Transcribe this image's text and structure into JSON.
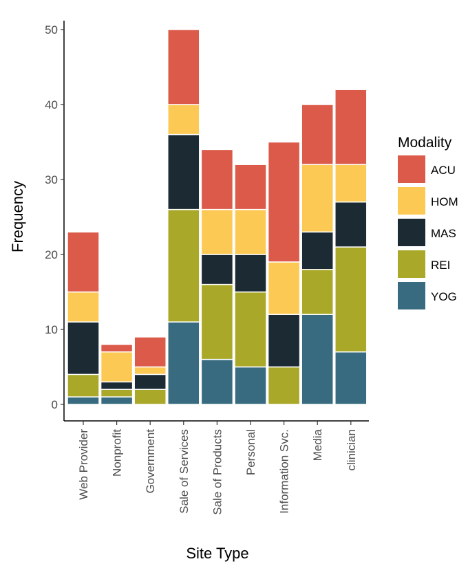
{
  "chart_data": {
    "type": "bar",
    "stacked": true,
    "xlabel": "Site Type",
    "ylabel": "Frequency",
    "ylim": [
      0,
      52
    ],
    "yticks": [
      0,
      10,
      20,
      30,
      40,
      50
    ],
    "categories": [
      "Web Provider",
      "Nonprofit",
      "Government",
      "Sale of Services",
      "Sale of Products",
      "Personal",
      "Information Svc.",
      "Media",
      "clinician"
    ],
    "legend": {
      "title": "Modality",
      "position": "right"
    },
    "series": [
      {
        "name": "YOG",
        "color": "#386b7f",
        "values": [
          1,
          1,
          0,
          11,
          6,
          5,
          0,
          12,
          7
        ]
      },
      {
        "name": "REI",
        "color": "#a9a828",
        "values": [
          3,
          1,
          2,
          15,
          10,
          10,
          5,
          6,
          14
        ]
      },
      {
        "name": "MAS",
        "color": "#1b2a33",
        "values": [
          7,
          1,
          2,
          10,
          4,
          5,
          7,
          5,
          6
        ]
      },
      {
        "name": "HOM",
        "color": "#fcc954",
        "values": [
          4,
          4,
          1,
          4,
          6,
          6,
          7,
          9,
          5
        ]
      },
      {
        "name": "ACU",
        "color": "#db5a4a",
        "values": [
          8,
          1,
          4,
          10,
          8,
          6,
          16,
          8,
          10
        ]
      }
    ]
  }
}
